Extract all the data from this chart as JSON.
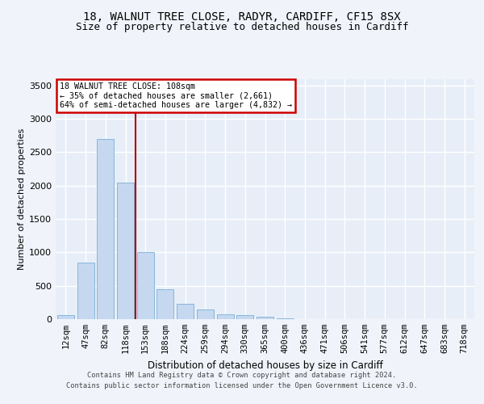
{
  "title_line1": "18, WALNUT TREE CLOSE, RADYR, CARDIFF, CF15 8SX",
  "title_line2": "Size of property relative to detached houses in Cardiff",
  "xlabel": "Distribution of detached houses by size in Cardiff",
  "ylabel": "Number of detached properties",
  "footer_line1": "Contains HM Land Registry data © Crown copyright and database right 2024.",
  "footer_line2": "Contains public sector information licensed under the Open Government Licence v3.0.",
  "bar_labels": [
    "12sqm",
    "47sqm",
    "82sqm",
    "118sqm",
    "153sqm",
    "188sqm",
    "224sqm",
    "259sqm",
    "294sqm",
    "330sqm",
    "365sqm",
    "400sqm",
    "436sqm",
    "471sqm",
    "506sqm",
    "541sqm",
    "577sqm",
    "612sqm",
    "647sqm",
    "683sqm",
    "718sqm"
  ],
  "bar_values": [
    60,
    850,
    2700,
    2050,
    1000,
    450,
    230,
    150,
    70,
    55,
    35,
    10,
    5,
    3,
    2,
    1,
    0,
    0,
    0,
    0,
    0
  ],
  "bar_color": "#c5d8f0",
  "bar_edgecolor": "#7aafd4",
  "annotation_line1": "18 WALNUT TREE CLOSE: 108sqm",
  "annotation_line2": "← 35% of detached houses are smaller (2,661)",
  "annotation_line3": "64% of semi-detached houses are larger (4,832) →",
  "annotation_box_facecolor": "#ffffff",
  "annotation_box_edgecolor": "#cc0000",
  "vline_x": 3.5,
  "vline_color": "#aa0000",
  "ylim_max": 3600,
  "yticks": [
    0,
    500,
    1000,
    1500,
    2000,
    2500,
    3000,
    3500
  ],
  "bg_color": "#f0f4fa",
  "plot_bg_color": "#e8eef8",
  "grid_color": "#ffffff",
  "title_fontsize": 10,
  "subtitle_fontsize": 9,
  "axis_label_fontsize": 8,
  "tick_fontsize": 7.5,
  "footer_fontsize": 6.2
}
